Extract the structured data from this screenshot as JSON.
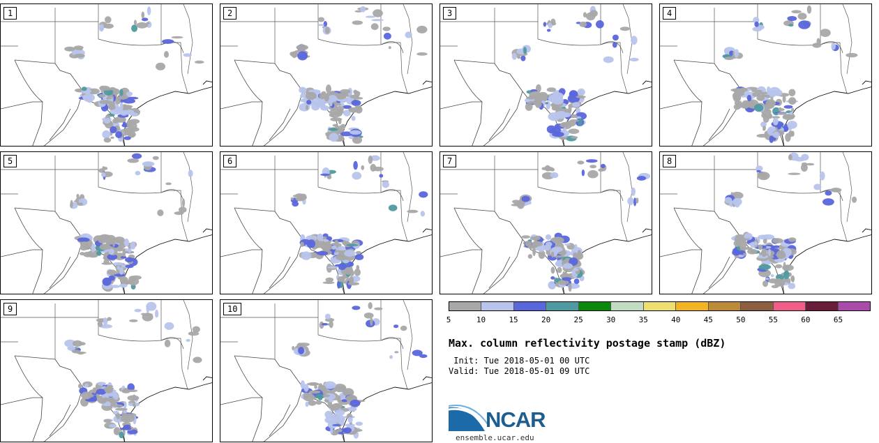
{
  "panels": [
    {
      "label": "1"
    },
    {
      "label": "2"
    },
    {
      "label": "3"
    },
    {
      "label": "4"
    },
    {
      "label": "5"
    },
    {
      "label": "6"
    },
    {
      "label": "7"
    },
    {
      "label": "8"
    },
    {
      "label": "9"
    },
    {
      "label": "10"
    }
  ],
  "colorbar": {
    "colors": [
      "#a8a8a8",
      "#b8c4ec",
      "#5a66dc",
      "#4f9aa0",
      "#0a880a",
      "#c2dcc2",
      "#eee070",
      "#f2b420",
      "#bd8a38",
      "#8e5e40",
      "#f25c88",
      "#6a1c3a",
      "#aa4aaa"
    ],
    "ticks": [
      "5",
      "10",
      "15",
      "20",
      "25",
      "30",
      "35",
      "40",
      "45",
      "50",
      "55",
      "60",
      "65"
    ]
  },
  "title": "Max. column reflectivity postage stamp (dBZ)",
  "init": " Init: Tue 2018-05-01 00 UTC",
  "valid": "Valid: Tue 2018-05-01 09 UTC",
  "logo": {
    "text": "NCAR",
    "url": "ensemble.ucar.edu"
  }
}
